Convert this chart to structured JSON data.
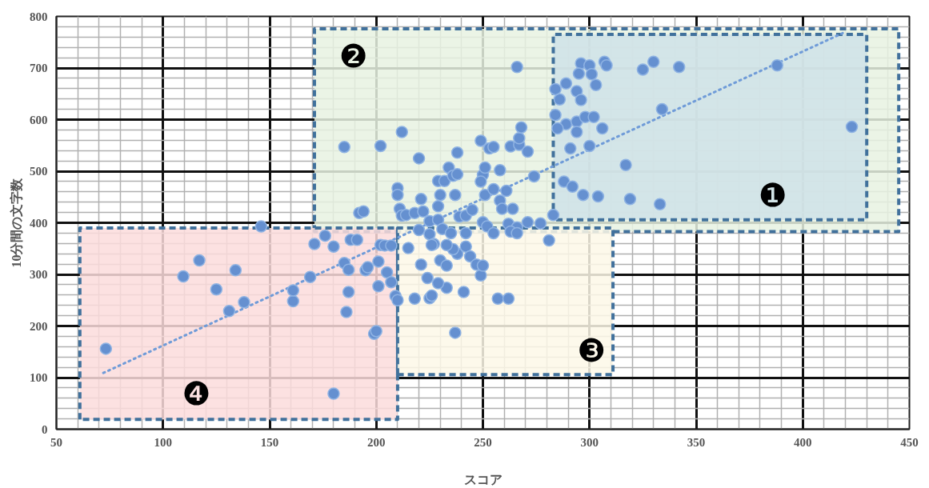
{
  "chart_data": {
    "type": "scatter",
    "xlabel": "スコア",
    "ylabel": "10分間の文字数",
    "xlim": [
      50,
      450
    ],
    "xticks": [
      50,
      100,
      150,
      200,
      250,
      300,
      350,
      400,
      450
    ],
    "ylim": [
      0,
      800
    ],
    "yticks": [
      0,
      100,
      200,
      300,
      400,
      500,
      600,
      700,
      800
    ],
    "grid": true,
    "marker": "circle",
    "annotations": [
      "❶",
      "❷",
      "❸",
      "❹"
    ],
    "series": [
      {
        "type": "area",
        "color": "#cfe2e8",
        "line_style": "dashed",
        "marker": "none",
        "x": [
          283,
          283,
          430,
          430,
          283
        ],
        "values": [
          406,
          765,
          765,
          406,
          406
        ]
      },
      {
        "type": "area",
        "color": "#e8f2e2",
        "line_style": "dashed",
        "marker": "none",
        "x": [
          171,
          171,
          445,
          445,
          171
        ],
        "values": [
          383,
          776,
          776,
          383,
          383
        ]
      },
      {
        "type": "area",
        "color": "#fdf8e8",
        "line_style": "dashed",
        "marker": "none",
        "x": [
          210,
          210,
          311,
          311,
          210
        ],
        "values": [
          106,
          390,
          390,
          106,
          106
        ]
      },
      {
        "type": "area",
        "color": "#fbdcdc",
        "line_style": "dashed",
        "marker": "none",
        "x": [
          61,
          61,
          210,
          210,
          61
        ],
        "values": [
          19,
          390,
          390,
          19,
          19
        ]
      },
      {
        "color": "#6590d0",
        "x": [
          73.2,
          109.5,
          117,
          125,
          134,
          131,
          138,
          146,
          161,
          161,
          169,
          171,
          176,
          180,
          180,
          185,
          186,
          187,
          187,
          188,
          191,
          195,
          196,
          199,
          200,
          201,
          201,
          202,
          204,
          205,
          207,
          207,
          209,
          210,
          185,
          202,
          212,
          220,
          192,
          194,
          210,
          210,
          211,
          212,
          214,
          218,
          221,
          222,
          225,
          229,
          229,
          230,
          229,
          232,
          234,
          236,
          238,
          238,
          237,
          239,
          242,
          245,
          249,
          253,
          255,
          250,
          251,
          249,
          251,
          255,
          258,
          258,
          259,
          261,
          264,
          263,
          267,
          267,
          268,
          271,
          274,
          266,
          262,
          266,
          271,
          277,
          283,
          220,
          225,
          231,
          235,
          242,
          250,
          252,
          255,
          263,
          266,
          215,
          221,
          218,
          224,
          225,
          226,
          227,
          230,
          233,
          233,
          238,
          237,
          241,
          242,
          244,
          247,
          249,
          250,
          257,
          262,
          229,
          236,
          226,
          233,
          296,
          300,
          307,
          308,
          295,
          301,
          289,
          294,
          303,
          296,
          286,
          284,
          284,
          289,
          285,
          294,
          298,
          302,
          294,
          306,
          291,
          300,
          317,
          288,
          292,
          297,
          304,
          319,
          333,
          281,
          325,
          330,
          342,
          334,
          423,
          388
        ],
        "values": [
          156,
          296,
          327,
          271,
          308,
          229,
          246,
          393,
          248,
          269,
          295,
          359,
          375,
          354,
          69,
          322,
          227,
          266,
          309,
          367,
          367,
          308,
          314,
          185,
          190,
          325,
          277,
          357,
          356,
          304,
          356,
          285,
          258,
          250,
          547,
          549,
          576,
          525,
          419,
          422,
          467,
          454,
          427,
          414,
          415,
          419,
          446,
          422,
          403,
          432,
          406,
          454,
          481,
          481,
          507,
          491,
          536,
          494,
          454,
          412,
          414,
          425,
          559,
          544,
          547,
          493,
          507,
          480,
          454,
          465,
          443,
          502,
          427,
          462,
          427,
          548,
          551,
          564,
          585,
          538,
          490,
          702,
          398,
          391,
          401,
          399,
          415,
          386,
          378,
          388,
          380,
          380,
          401,
          393,
          380,
          383,
          380,
          351,
          319,
          253,
          293,
          254,
          259,
          359,
          327,
          317,
          274,
          340,
          187,
          266,
          354,
          335,
          319,
          298,
          317,
          253,
          253,
          283,
          349,
          357,
          357,
          709,
          705,
          712,
          705,
          689,
          688,
          670,
          655,
          667,
          638,
          639,
          659,
          609,
          591,
          583,
          596,
          605,
          605,
          576,
          583,
          544,
          549,
          512,
          480,
          470,
          454,
          451,
          446,
          436,
          366,
          697,
          712,
          702,
          620,
          586,
          705
        ]
      },
      {
        "type": "line",
        "color": "#6f9bd8",
        "line_style": "dotted",
        "marker": "none",
        "x": [
          72,
          420
        ],
        "values": [
          109,
          770
        ]
      }
    ]
  }
}
